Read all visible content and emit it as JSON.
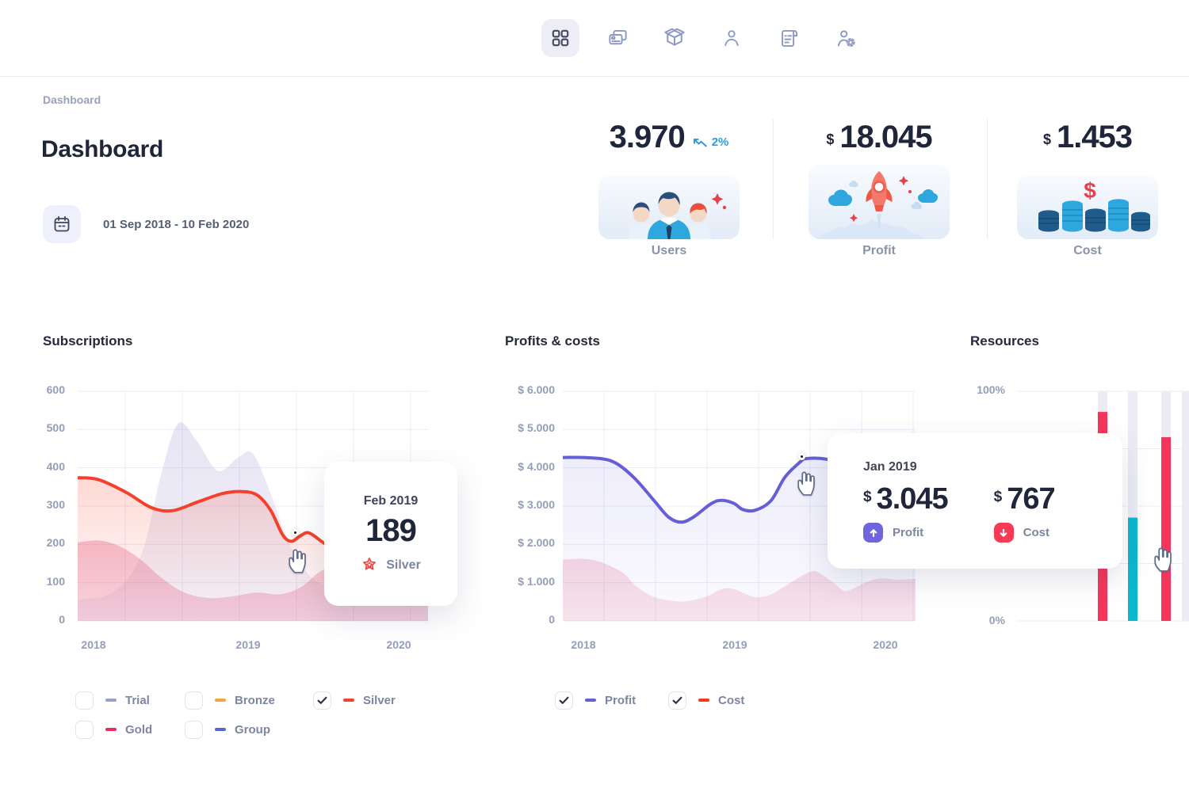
{
  "topbar": {
    "icons": [
      {
        "name": "dashboard-icon",
        "active": true
      },
      {
        "name": "cards-icon",
        "active": false
      },
      {
        "name": "package-icon",
        "active": false
      },
      {
        "name": "user-icon",
        "active": false
      },
      {
        "name": "invoice-icon",
        "active": false
      },
      {
        "name": "user-settings-icon",
        "active": false
      }
    ]
  },
  "breadcrumb": "Dashboard",
  "page": {
    "title": "Dashboard",
    "date_range": "01 Sep 2018 - 10 Feb 2020"
  },
  "stats": [
    {
      "value": "3.970",
      "delta": "2%",
      "label": "Users",
      "illustration": "users-group"
    },
    {
      "currency": "$",
      "value": "18.045",
      "label": "Profit",
      "illustration": "rocket"
    },
    {
      "currency": "$",
      "value": "1.453",
      "label": "Cost",
      "illustration": "coin-stacks",
      "coins_symbol": "$"
    }
  ],
  "colors": {
    "accent_blue": "#2d9cdb",
    "silver_red": "#f5402c",
    "gold_crimson": "#ee2b5c",
    "bronze_orange": "#f2a53c",
    "trial_slate": "#98a1c6",
    "group_indigo": "#5b66d2",
    "profit_indigo": "#645fd6",
    "cost_red": "#f5371f",
    "bar_red": "#f5365c",
    "bar_teal": "#0cb8ce"
  },
  "chart_data": [
    {
      "type": "area",
      "title": "Subscriptions",
      "x_ticks": [
        "2018",
        "2019",
        "2020"
      ],
      "y_ticks": [
        "0",
        "100",
        "200",
        "300",
        "400",
        "500",
        "600"
      ],
      "ylim": [
        0,
        600
      ],
      "grid": true,
      "series": [
        {
          "name": "Group (background area)",
          "color": "#7660bc",
          "points": [
            [
              0,
              55
            ],
            [
              0.1,
              75
            ],
            [
              0.18,
              170
            ],
            [
              0.24,
              390
            ],
            [
              0.287,
              516
            ],
            [
              0.34,
              470
            ],
            [
              0.4,
              392
            ],
            [
              0.46,
              428
            ],
            [
              0.5,
              437
            ],
            [
              0.55,
              335
            ],
            [
              0.6,
              210
            ],
            [
              0.66,
              120
            ],
            [
              0.73,
              85
            ],
            [
              0.82,
              65
            ],
            [
              0.92,
              56
            ],
            [
              1,
              50
            ]
          ]
        },
        {
          "name": "Gold (background area)",
          "color": "#e24a76",
          "points": [
            [
              0,
              205
            ],
            [
              0.06,
              210
            ],
            [
              0.12,
              195
            ],
            [
              0.18,
              160
            ],
            [
              0.24,
              112
            ],
            [
              0.3,
              76
            ],
            [
              0.37,
              60
            ],
            [
              0.44,
              64
            ],
            [
              0.51,
              74
            ],
            [
              0.58,
              70
            ],
            [
              0.64,
              90
            ],
            [
              0.69,
              128
            ],
            [
              0.72,
              136
            ],
            [
              0.76,
              120
            ],
            [
              0.81,
              98
            ],
            [
              0.86,
              103
            ],
            [
              0.92,
              130
            ],
            [
              1,
              152
            ]
          ]
        },
        {
          "name": "Silver",
          "color": "#f5402c",
          "points": [
            [
              0,
              374
            ],
            [
              0.06,
              369
            ],
            [
              0.14,
              335
            ],
            [
              0.21,
              296
            ],
            [
              0.27,
              288
            ],
            [
              0.34,
              310
            ],
            [
              0.41,
              332
            ],
            [
              0.46,
              338
            ],
            [
              0.51,
              330
            ],
            [
              0.55,
              290
            ],
            [
              0.585,
              225
            ],
            [
              0.61,
              208
            ],
            [
              0.635,
              222
            ],
            [
              0.66,
              230
            ],
            [
              0.7,
              205
            ],
            [
              0.74,
              180
            ],
            [
              0.77,
              170
            ]
          ]
        }
      ],
      "highlight": {
        "date": "Feb 2019",
        "value": "189",
        "series": "Silver"
      },
      "legend": [
        {
          "label": "Trial",
          "color": "#98a1c6",
          "checked": false
        },
        {
          "label": "Bronze",
          "color": "#f2a53c",
          "checked": false
        },
        {
          "label": "Silver",
          "color": "#f5402c",
          "checked": true
        },
        {
          "label": "Gold",
          "color": "#ee2b5c",
          "checked": false
        },
        {
          "label": "Group",
          "color": "#5b66d2",
          "checked": false
        }
      ]
    },
    {
      "type": "area",
      "title": "Profits & costs",
      "x_ticks": [
        "2018",
        "2019",
        "2020"
      ],
      "y_ticks": [
        "0",
        "$ 1.000",
        "$ 2.000",
        "$ 3.000",
        "$ 4.000",
        "$ 5.000",
        "$ 6.000"
      ],
      "ylim": [
        0,
        6000
      ],
      "grid": true,
      "series": [
        {
          "name": "Cost",
          "color": "#e24a76",
          "points": [
            [
              0,
              1600
            ],
            [
              0.06,
              1620
            ],
            [
              0.11,
              1530
            ],
            [
              0.17,
              1260
            ],
            [
              0.21,
              890
            ],
            [
              0.26,
              620
            ],
            [
              0.32,
              515
            ],
            [
              0.36,
              525
            ],
            [
              0.41,
              650
            ],
            [
              0.45,
              830
            ],
            [
              0.48,
              840
            ],
            [
              0.52,
              700
            ],
            [
              0.55,
              620
            ],
            [
              0.59,
              690
            ],
            [
              0.63,
              910
            ],
            [
              0.68,
              1190
            ],
            [
              0.71,
              1300
            ],
            [
              0.73,
              1240
            ],
            [
              0.77,
              980
            ],
            [
              0.79,
              820
            ],
            [
              0.81,
              790
            ],
            [
              0.86,
              1010
            ],
            [
              0.9,
              1110
            ],
            [
              0.95,
              1080
            ],
            [
              1,
              1100
            ]
          ]
        },
        {
          "name": "Profit",
          "color": "#645fd6",
          "points": [
            [
              0,
              4270
            ],
            [
              0.07,
              4265
            ],
            [
              0.14,
              4170
            ],
            [
              0.2,
              3760
            ],
            [
              0.26,
              3130
            ],
            [
              0.3,
              2710
            ],
            [
              0.335,
              2580
            ],
            [
              0.37,
              2710
            ],
            [
              0.42,
              3060
            ],
            [
              0.45,
              3150
            ],
            [
              0.485,
              3070
            ],
            [
              0.51,
              2910
            ],
            [
              0.545,
              2890
            ],
            [
              0.59,
              3140
            ],
            [
              0.63,
              3760
            ],
            [
              0.674,
              4160
            ],
            [
              0.69,
              4240
            ],
            [
              0.745,
              4230
            ],
            [
              0.81,
              4060
            ],
            [
              0.88,
              3940
            ],
            [
              0.95,
              3870
            ],
            [
              1,
              3850
            ]
          ]
        }
      ],
      "highlight": {
        "date": "Jan 2019",
        "items": [
          {
            "prefix": "$",
            "value": "3.045",
            "label": "Profit",
            "direction": "up",
            "color": "#6f66dd"
          },
          {
            "prefix": "$",
            "value": "767",
            "label": "Cost",
            "direction": "down",
            "color": "#f83b54"
          }
        ]
      },
      "legend": [
        {
          "label": "Profit",
          "color": "#645fd6",
          "checked": true
        },
        {
          "label": "Cost",
          "color": "#f5371f",
          "checked": true
        }
      ]
    },
    {
      "type": "bar",
      "title": "Resources",
      "y_ticks": [
        "100%",
        "0%"
      ],
      "ylim": [
        0,
        100
      ],
      "bars": [
        {
          "value": 91,
          "color": "#f5365c"
        },
        {
          "value": 45,
          "color": "#0cb8ce"
        },
        {
          "value": 80,
          "color": "#f5365c"
        },
        {
          "value": null,
          "color": null
        }
      ]
    }
  ]
}
